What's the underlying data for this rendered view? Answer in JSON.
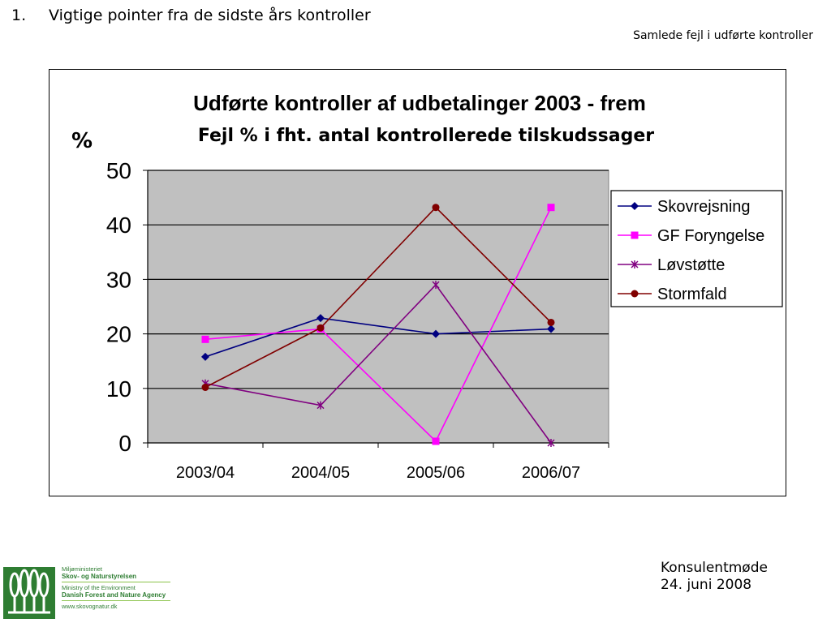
{
  "slide": {
    "item_number": "1.",
    "heading": "Vigtige pointer fra de sidste års kontroller",
    "subtitle": "Samlede fejl i udførte kontroller",
    "footer_line1": "Konsulentmøde",
    "footer_line2": "24. juni 2008"
  },
  "logo": {
    "line1": "Miljøministeriet",
    "line2": "Skov- og Naturstyrelsen",
    "line3": "Ministry of the Environment",
    "line4": "Danish Forest and Nature Agency",
    "line5": "www.skovognatur.dk",
    "color": "#2e7d32"
  },
  "chart_data": {
    "type": "line",
    "title": "Udførte kontroller af udbetalinger 2003 - frem",
    "subtitle": "Fejl % i fht. antal kontrollerede tilskudssager",
    "ylabel": "%",
    "xlabel": "",
    "categories": [
      "2003/04",
      "2004/05",
      "2005/06",
      "2006/07"
    ],
    "ylim": [
      0,
      50
    ],
    "yticks": [
      "0",
      "10",
      "20",
      "30",
      "40",
      "50"
    ],
    "grid": true,
    "plot_background": "#c0c0c0",
    "legend_position": "right",
    "series": [
      {
        "name": "Skovrejsning",
        "values": [
          15.8,
          22.9,
          20.0,
          20.9
        ],
        "color": "#000080",
        "marker": "diamond"
      },
      {
        "name": "GF Foryngelse",
        "values": [
          19.0,
          20.9,
          0.3,
          43.2
        ],
        "color": "#ff00ff",
        "marker": "square"
      },
      {
        "name": "Løvstøtte",
        "values": [
          10.9,
          6.9,
          29.0,
          0.0
        ],
        "color": "#800080",
        "marker": "star"
      },
      {
        "name": "Stormfald",
        "values": [
          10.2,
          21.1,
          43.2,
          22.1
        ],
        "color": "#800000",
        "marker": "circle"
      }
    ]
  }
}
